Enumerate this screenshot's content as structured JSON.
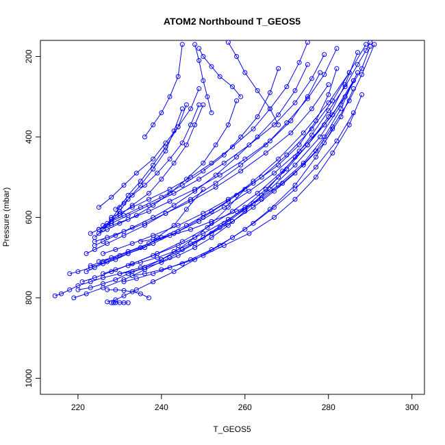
{
  "chart_data": {
    "type": "line",
    "title": "ATOM2 Northbound T_GEOS5",
    "xlabel": "T_GEOS5",
    "ylabel": "Pressure (mbar)",
    "xlim": [
      211,
      303
    ],
    "ylim": [
      1040,
      160
    ],
    "y_reversed": true,
    "grid": false,
    "legend": "none",
    "marker": "open-circle",
    "color": "#0000FF",
    "x_ticks": [
      220,
      240,
      260,
      280,
      300
    ],
    "y_ticks": [
      200,
      400,
      600,
      800,
      1000
    ],
    "series": [
      {
        "x": [
          214.5,
          216.0,
          218.0,
          220.0,
          223.0,
          226.0,
          230.0,
          235.0,
          240.0,
          245.0,
          250.0,
          255.0,
          260.0,
          265.0,
          270.0,
          275.0,
          280.0,
          284.0,
          287.0
        ],
        "y": [
          795,
          790,
          780,
          770,
          760,
          750,
          740,
          725,
          705,
          680,
          650,
          615,
          575,
          530,
          480,
          420,
          350,
          270,
          190
        ]
      },
      {
        "x": [
          218.0,
          220.0,
          223.0,
          227.0,
          232.0,
          238.0,
          244.0,
          250.0,
          256.0,
          262.0,
          268.0,
          274.0,
          280.0,
          285.0,
          289.0
        ],
        "y": [
          740,
          735,
          725,
          710,
          690,
          665,
          635,
          600,
          560,
          510,
          455,
          390,
          315,
          240,
          170
        ]
      },
      {
        "x": [
          221.0,
          224.0,
          228.0,
          233.0,
          239.0,
          245.0,
          251.0,
          257.0,
          263.0,
          269.0,
          275.0,
          281.0,
          286.0
        ],
        "y": [
          760,
          750,
          735,
          715,
          690,
          660,
          625,
          585,
          540,
          485,
          420,
          345,
          260
        ]
      },
      {
        "x": [
          219.0,
          222.0,
          226.0,
          231.0,
          236.0,
          242.0,
          248.0,
          254.0,
          260.0,
          266.0,
          272.0,
          278.0,
          283.0,
          287.0
        ],
        "y": [
          800,
          790,
          775,
          755,
          730,
          700,
          665,
          625,
          580,
          530,
          470,
          400,
          320,
          240
        ]
      },
      {
        "x": [
          225.0,
          228.0,
          232.0,
          237.0,
          243.0,
          249.0,
          255.0,
          261.0,
          267.0,
          273.0,
          279.0,
          284.0,
          288.0,
          290.0
        ],
        "y": [
          710,
          700,
          685,
          665,
          640,
          610,
          575,
          535,
          490,
          435,
          370,
          300,
          230,
          175
        ]
      },
      {
        "x": [
          227.0,
          229.0,
          231.0,
          234.0,
          238.0,
          243.0,
          248.0,
          254.0,
          260.0,
          266.0,
          272.0,
          277.0,
          281.0
        ],
        "y": [
          810,
          805,
          795,
          780,
          760,
          735,
          705,
          670,
          630,
          580,
          520,
          450,
          380
        ]
      },
      {
        "x": [
          223.0,
          226.0,
          230.0,
          235.0,
          240.0,
          246.0,
          252.0,
          258.0,
          264.0,
          270.0,
          276.0,
          281.0,
          285.0
        ],
        "y": [
          720,
          710,
          695,
          675,
          650,
          620,
          585,
          545,
          500,
          445,
          380,
          310,
          240
        ]
      },
      {
        "x": [
          226.0,
          229.0,
          233.0,
          238.0,
          244.0,
          250.0,
          256.0,
          262.0,
          268.0,
          274.0,
          279.0,
          283.0,
          286.0
        ],
        "y": [
          740,
          730,
          715,
          695,
          670,
          640,
          605,
          565,
          520,
          465,
          400,
          330,
          260
        ]
      },
      {
        "x": [
          222.0,
          224.0,
          227.0,
          231.0,
          236.0,
          241.0,
          247.0,
          253.0,
          259.0,
          265.0,
          270.0,
          275.0,
          279.0,
          282.0
        ],
        "y": [
          690,
          680,
          665,
          645,
          620,
          590,
          555,
          515,
          470,
          420,
          365,
          305,
          245,
          180
        ]
      },
      {
        "x": [
          224.0,
          227.0,
          231.0,
          236.0,
          241.0,
          247.0,
          253.0,
          259.0,
          265.0,
          271.0,
          276.0,
          280.0
        ],
        "y": [
          660,
          650,
          635,
          615,
          590,
          560,
          525,
          485,
          440,
          390,
          330,
          270
        ]
      },
      {
        "x": [
          223.0,
          225.0,
          228.0,
          232.0,
          237.0,
          243.0,
          249.0,
          255.0,
          261.0,
          267.0,
          272.0,
          276.0,
          279.0
        ],
        "y": [
          640,
          630,
          615,
          595,
          570,
          540,
          505,
          465,
          420,
          370,
          315,
          255,
          195
        ]
      },
      {
        "x": [
          225.0,
          228.0,
          232.0,
          237.0,
          242.0,
          248.0,
          254.0,
          260.0,
          266.0,
          271.0,
          275.0,
          278.0
        ],
        "y": [
          630,
          620,
          605,
          585,
          560,
          530,
          495,
          455,
          410,
          360,
          300,
          240
        ]
      },
      {
        "x": [
          224.0,
          226.0,
          229.0,
          233.0,
          238.0,
          243.0,
          248.0,
          253.0,
          258.0,
          263.0,
          268.0,
          272.0,
          275.0
        ],
        "y": [
          670,
          660,
          645,
          625,
          600,
          570,
          535,
          495,
          450,
          400,
          345,
          285,
          220
        ]
      },
      {
        "x": [
          226.0,
          229.0,
          233.0,
          238.0,
          244.0,
          250.0,
          256.0,
          262.0,
          268.0,
          273.0,
          277.0,
          280.0,
          282.0
        ],
        "y": [
          690,
          680,
          665,
          645,
          620,
          590,
          555,
          515,
          470,
          420,
          360,
          295,
          230
        ]
      },
      {
        "x": [
          228.0,
          230.0,
          233.0,
          237.0,
          242.0,
          247.0,
          252.0,
          257.0,
          262.0,
          266.0,
          270.0,
          273.0,
          275.0
        ],
        "y": [
          600,
          590,
          575,
          555,
          530,
          500,
          465,
          425,
          380,
          330,
          275,
          215,
          165
        ]
      },
      {
        "x": [
          226.0,
          228.0,
          231.0,
          235.0,
          240.0,
          245.0,
          250.0,
          255.0,
          259.0,
          263.0,
          266.0,
          268.0
        ],
        "y": [
          620,
          610,
          595,
          575,
          550,
          520,
          485,
          445,
          400,
          350,
          290,
          230
        ]
      },
      {
        "x": [
          225.0,
          227.0,
          230.0,
          234.0,
          238.0,
          242.0,
          246.0,
          250.0,
          253.0,
          256.0,
          258.0
        ],
        "y": [
          640,
          630,
          615,
          595,
          570,
          540,
          505,
          465,
          420,
          370,
          310
        ]
      },
      {
        "x": [
          225.0,
          227.0,
          230.0,
          233.0,
          237.0,
          240.0,
          243.0,
          246.0,
          248.0,
          250.0
        ],
        "y": [
          630,
          615,
          595,
          570,
          540,
          505,
          465,
          420,
          370,
          320
        ]
      },
      {
        "x": [
          229.0,
          231.0,
          233.0,
          236.0,
          239.0,
          242.0,
          245.0,
          247.0,
          249.0
        ],
        "y": [
          580,
          565,
          545,
          520,
          490,
          455,
          415,
          370,
          320
        ]
      },
      {
        "x": [
          226.0,
          228.0,
          230.0,
          232.0,
          235.0,
          238.0,
          241.0,
          243.0,
          245.0
        ],
        "y": [
          630,
          610,
          585,
          555,
          520,
          480,
          435,
          385,
          330
        ]
      },
      {
        "x": [
          224.0,
          226.0,
          228.0,
          230.0,
          232.0,
          235.0,
          238.0,
          241.0,
          244.0,
          246.0
        ],
        "y": [
          650,
          630,
          605,
          575,
          545,
          510,
          470,
          425,
          375,
          320
        ]
      },
      {
        "x": [
          236.0,
          238.0,
          240.0,
          242.0,
          244.0,
          245.0
        ],
        "y": [
          400,
          370,
          340,
          300,
          250,
          170
        ]
      },
      {
        "x": [
          225.0,
          228.0,
          231.0,
          234.0,
          238.0,
          241.0,
          244.0,
          247.0,
          249.0
        ],
        "y": [
          575,
          550,
          520,
          490,
          455,
          415,
          375,
          330,
          280
        ]
      },
      {
        "x": [
          222.0,
          224.0,
          226.0,
          229.0,
          232.0,
          236.0,
          239.0,
          243.0,
          246.0,
          250.0
        ],
        "y": [
          735,
          725,
          715,
          705,
          690,
          675,
          650,
          620,
          580,
          530
        ]
      },
      {
        "x": [
          220.0,
          223.0,
          226.0,
          229.0,
          232.0,
          236.0,
          240.0,
          244.0,
          248.0,
          252.0,
          256.0,
          260.0
        ],
        "y": [
          780,
          775,
          765,
          755,
          740,
          725,
          705,
          680,
          650,
          615,
          575,
          530
        ]
      },
      {
        "x": [
          227.0,
          229.0,
          231.0,
          233.0,
          235.0,
          237.0
        ],
        "y": [
          780,
          780,
          782,
          785,
          790,
          800
        ]
      },
      {
        "x": [
          228.0,
          228.5,
          229.0,
          230.0,
          231.0,
          232.0
        ],
        "y": [
          812,
          812,
          812,
          812,
          812,
          812
        ]
      },
      {
        "x": [
          248.0,
          249.0,
          250.0,
          251.0,
          252.0
        ],
        "y": [
          170,
          210,
          260,
          300,
          340
        ]
      },
      {
        "x": [
          249.0,
          250.0,
          252.0,
          254.0,
          257.0,
          259.0
        ],
        "y": [
          180,
          200,
          225,
          250,
          275,
          300
        ]
      },
      {
        "x": [
          256.0,
          258.0,
          260.0,
          263.0,
          266.0,
          268.0
        ],
        "y": [
          165,
          200,
          240,
          285,
          330,
          370
        ]
      },
      {
        "x": [
          230.0,
          233.0,
          236.0,
          240.0,
          244.0,
          248.0,
          252.0,
          256.0,
          260.0,
          264.0,
          268.0,
          272.0,
          276.0,
          280.0,
          284.0,
          287.0,
          289.0,
          290.0
        ],
        "y": [
          740,
          735,
          725,
          712,
          695,
          675,
          650,
          620,
          585,
          545,
          500,
          450,
          395,
          335,
          275,
          220,
          185,
          165
        ]
      },
      {
        "x": [
          232.0,
          235.0,
          239.0,
          243.0,
          247.0,
          252.0,
          257.0,
          262.0,
          267.0,
          272.0,
          277.0,
          281.0,
          285.0,
          288.0,
          291.0
        ],
        "y": [
          720,
          712,
          700,
          685,
          665,
          640,
          610,
          575,
          535,
          490,
          435,
          375,
          310,
          245,
          170
        ]
      },
      {
        "x": [
          231.0,
          234.0,
          238.0,
          242.0,
          247.0,
          252.0,
          257.0,
          262.0,
          267.0,
          272.0,
          277.0,
          282.0,
          286.0
        ],
        "y": [
          760,
          752,
          740,
          725,
          705,
          680,
          650,
          615,
          575,
          530,
          475,
          410,
          340
        ]
      },
      {
        "x": [
          233.0,
          236.0,
          240.0,
          245.0,
          250.0,
          255.0,
          261.0,
          267.0,
          272.0,
          277.0,
          281.0,
          285.0,
          288.0
        ],
        "y": [
          745,
          740,
          730,
          715,
          695,
          670,
          640,
          600,
          555,
          500,
          440,
          370,
          295
        ]
      },
      {
        "x": [
          235.0,
          238.0,
          242.0,
          247.0,
          252.0,
          258.0,
          264.0,
          269.0,
          274.0,
          279.0,
          283.0,
          286.0
        ],
        "y": [
          660,
          655,
          645,
          630,
          610,
          585,
          555,
          515,
          470,
          415,
          350,
          280
        ]
      }
    ]
  }
}
